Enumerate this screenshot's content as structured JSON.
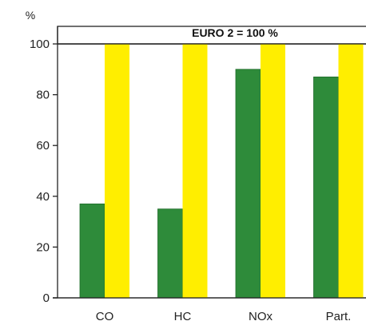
{
  "chart_data": {
    "type": "bar",
    "title": "EURO 2 = 100 %",
    "ylabel": "%",
    "xlabel": "",
    "categories": [
      "CO",
      "HC",
      "NOx",
      "Part."
    ],
    "ylim": [
      0,
      100
    ],
    "yticks": [
      "0",
      "20",
      "40",
      "60",
      "80",
      "100"
    ],
    "series": [
      {
        "values": [
          37,
          35,
          90,
          87
        ],
        "color": "#2e8b3a"
      },
      {
        "values": [
          100,
          100,
          100,
          100
        ],
        "color": "#ffee00"
      }
    ],
    "grid": false,
    "legend": "none"
  }
}
